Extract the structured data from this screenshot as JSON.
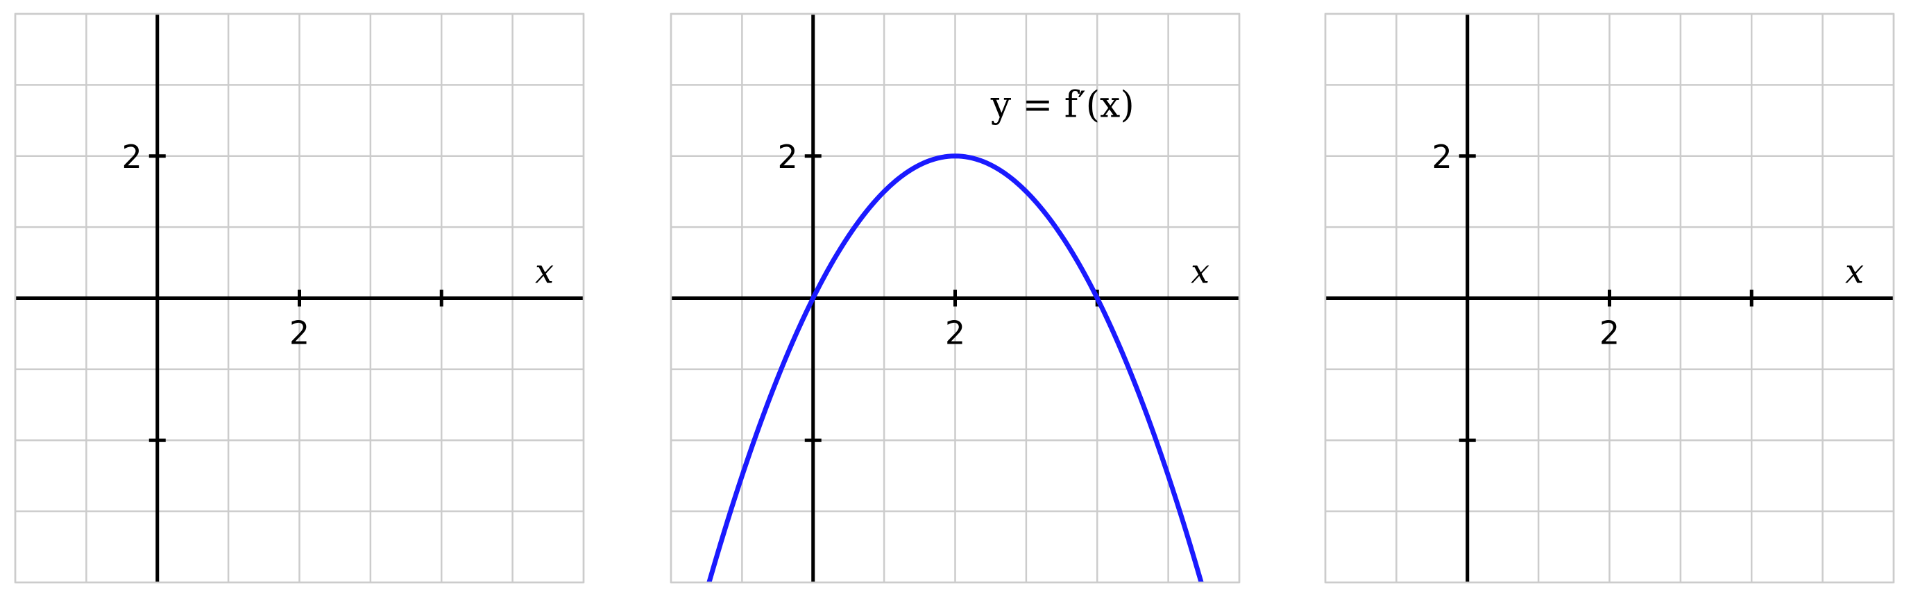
{
  "chart_data": [
    {
      "type": "line",
      "xlabel": "x",
      "xlim": [
        -2,
        6
      ],
      "ylim": [
        -4,
        4
      ],
      "grid": true,
      "x_ticks": [
        2,
        4
      ],
      "y_ticks": [
        2,
        -2
      ],
      "x_tick_labels": [
        "2",
        ""
      ],
      "y_tick_labels": [
        "2",
        ""
      ],
      "series": []
    },
    {
      "type": "line",
      "xlabel": "x",
      "xlim": [
        -2,
        6
      ],
      "ylim": [
        -4,
        4
      ],
      "grid": true,
      "x_ticks": [
        2,
        4
      ],
      "y_ticks": [
        2,
        -2
      ],
      "x_tick_labels": [
        "2",
        ""
      ],
      "y_tick_labels": [
        "2",
        ""
      ],
      "curve_label": "y = f′(x)",
      "series": [
        {
          "color": "#1a1aff",
          "x": [
            -1.5,
            -1,
            -0.5,
            0,
            0.5,
            1,
            1.5,
            2,
            2.5,
            3,
            3.5,
            4,
            4.5,
            5,
            5.5
          ],
          "y": [
            -4.125,
            -2.5,
            -1.125,
            0,
            0.875,
            1.5,
            1.875,
            2,
            1.875,
            1.5,
            0.875,
            0,
            -1.125,
            -2.5,
            -4.125
          ]
        }
      ]
    },
    {
      "type": "line",
      "xlabel": "x",
      "xlim": [
        -2,
        6
      ],
      "ylim": [
        -4,
        4
      ],
      "grid": true,
      "x_ticks": [
        2,
        4
      ],
      "y_ticks": [
        2,
        -2
      ],
      "x_tick_labels": [
        "2",
        ""
      ],
      "y_tick_labels": [
        "2",
        ""
      ],
      "series": []
    }
  ]
}
